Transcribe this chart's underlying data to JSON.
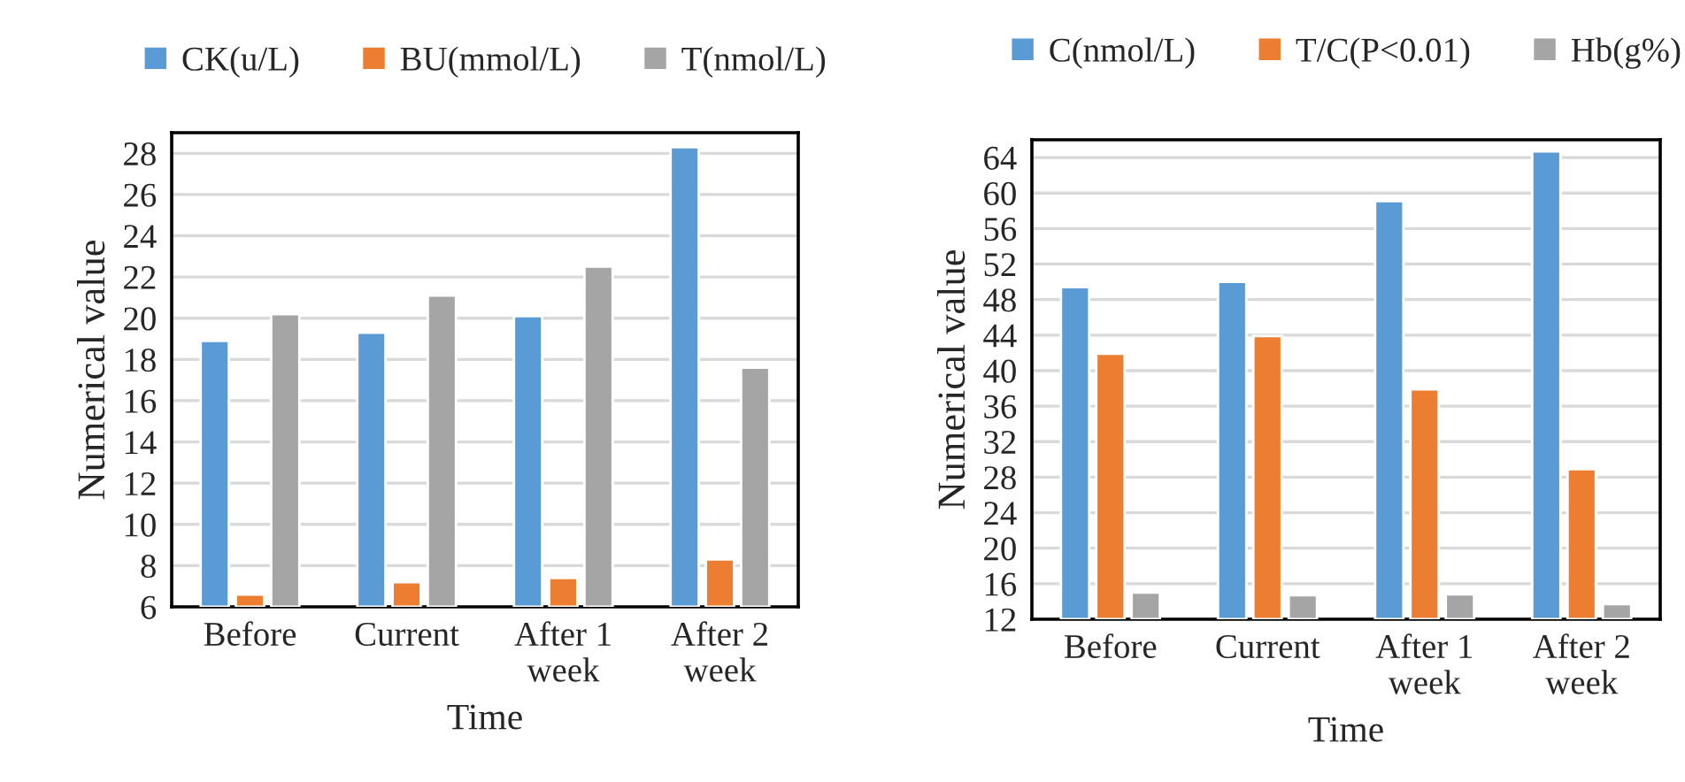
{
  "chart_data": [
    {
      "type": "bar",
      "xlabel": "Time",
      "ylabel": "Numerical value",
      "categories": [
        "Before",
        "Current",
        "After 1 week",
        "After 2 week"
      ],
      "ylim": [
        6,
        29
      ],
      "yticks": [
        6,
        8,
        10,
        12,
        14,
        16,
        18,
        20,
        22,
        24,
        26,
        28
      ],
      "grid": "y",
      "legend": "top",
      "series": [
        {
          "name": "CK(u/L)",
          "color": "#5b9bd5",
          "values": [
            18.9,
            19.3,
            20.1,
            28.3
          ]
        },
        {
          "name": "BU(mmol/L)",
          "color": "#ed7d31",
          "values": [
            6.6,
            7.2,
            7.4,
            8.3
          ]
        },
        {
          "name": "T(nmol/L)",
          "color": "#a5a5a5",
          "values": [
            20.2,
            21.1,
            22.5,
            17.6
          ]
        }
      ]
    },
    {
      "type": "bar",
      "xlabel": "Time",
      "ylabel": "Numerical value",
      "categories": [
        "Before",
        "Current",
        "After 1 week",
        "After 2 week"
      ],
      "ylim": [
        12,
        66
      ],
      "yticks": [
        12,
        16,
        20,
        24,
        28,
        32,
        36,
        40,
        44,
        48,
        52,
        56,
        60,
        64
      ],
      "grid": "y",
      "legend": "top",
      "series": [
        {
          "name": "C(nmol/L)",
          "color": "#5b9bd5",
          "values": [
            49.4,
            50,
            59.1,
            64.7
          ]
        },
        {
          "name": "T/C(P<0.01)",
          "color": "#ed7d31",
          "values": [
            41.9,
            43.9,
            37.9,
            28.9
          ]
        },
        {
          "name": "Hb(g%)",
          "color": "#a5a5a5",
          "values": [
            15.0,
            14.7,
            14.8,
            13.7
          ]
        }
      ]
    }
  ]
}
